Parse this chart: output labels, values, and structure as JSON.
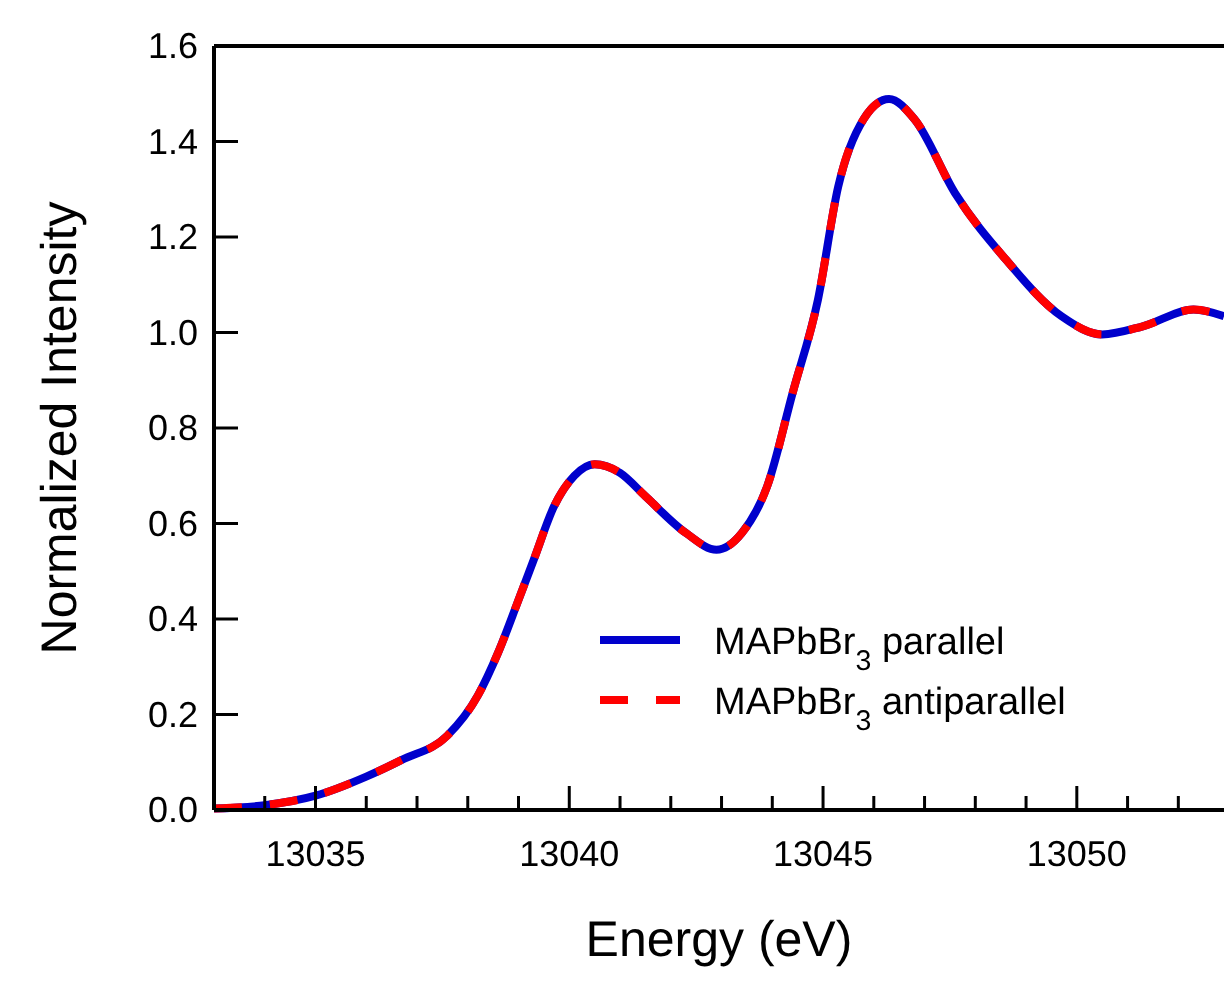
{
  "chart_data": {
    "type": "line",
    "xlabel": "Energy (eV)",
    "ylabel": "Normalized Intensity",
    "x": [
      13033.0,
      13034.0,
      13035.0,
      13036.0,
      13036.7,
      13037.6,
      13038.2,
      13038.6,
      13039.0,
      13039.3,
      13039.7,
      13040.1,
      13040.5,
      13041.0,
      13041.5,
      13042.3,
      13042.9,
      13043.4,
      13043.9,
      13044.4,
      13044.9,
      13045.3,
      13045.8,
      13046.3,
      13046.8,
      13047.6,
      13048.6,
      13049.7,
      13050.5,
      13051.3,
      13052.3,
      13052.9
    ],
    "series": [
      {
        "name": "MAPbBr$_{3}$ parallel",
        "color": "#0000cc",
        "line_style": "solid",
        "values": [
          0.003,
          0.01,
          0.03,
          0.07,
          0.105,
          0.156,
          0.24,
          0.33,
          0.44,
          0.524,
          0.636,
          0.7,
          0.724,
          0.706,
          0.657,
          0.58,
          0.545,
          0.58,
          0.678,
          0.873,
          1.069,
          1.306,
          1.447,
          1.489,
          1.447,
          1.292,
          1.153,
          1.034,
          0.996,
          1.013,
          1.048,
          1.034
        ]
      },
      {
        "name": "MAPbBr$_{3}$ antiparallel",
        "color": "#ff0000",
        "line_style": "dashed",
        "values": [
          0.003,
          0.01,
          0.03,
          0.07,
          0.105,
          0.156,
          0.24,
          0.33,
          0.44,
          0.524,
          0.636,
          0.7,
          0.724,
          0.706,
          0.657,
          0.58,
          0.545,
          0.58,
          0.678,
          0.873,
          1.069,
          1.306,
          1.447,
          1.489,
          1.447,
          1.292,
          1.153,
          1.034,
          0.996,
          1.013,
          1.048,
          1.034
        ]
      }
    ],
    "xlim": [
      13033,
      13052.9
    ],
    "xticks": [
      {
        "value": 13034,
        "label": null
      },
      13035,
      {
        "value": 13036,
        "label": null
      },
      {
        "value": 13037,
        "label": null
      },
      {
        "value": 13038,
        "label": null
      },
      {
        "value": 13039,
        "label": null
      },
      13040,
      {
        "value": 13041,
        "label": null
      },
      {
        "value": 13042,
        "label": null
      },
      {
        "value": 13043,
        "label": null
      },
      {
        "value": 13044,
        "label": null
      },
      13045,
      {
        "value": 13046,
        "label": null
      },
      {
        "value": 13047,
        "label": null
      },
      {
        "value": 13048,
        "label": null
      },
      {
        "value": 13049,
        "label": null
      },
      13050,
      {
        "value": 13051,
        "label": null
      },
      {
        "value": 13052,
        "label": null
      }
    ],
    "ylim": [
      0,
      1.6
    ],
    "yticks": [
      {
        "value": 0,
        "label": "0.0"
      },
      {
        "value": 0.2,
        "label": "0.2"
      },
      {
        "value": 0.4,
        "label": "0.4"
      },
      {
        "value": 0.6,
        "label": "0.6"
      },
      {
        "value": 0.8,
        "label": "0.8"
      },
      {
        "value": 1.0,
        "label": "1.0"
      },
      {
        "value": 1.2,
        "label": "1.2"
      },
      {
        "value": 1.4,
        "label": "1.4"
      },
      {
        "value": 1.6,
        "label": "1.6"
      }
    ],
    "legend": "bottom right",
    "grid": false,
    "marker": "none"
  }
}
